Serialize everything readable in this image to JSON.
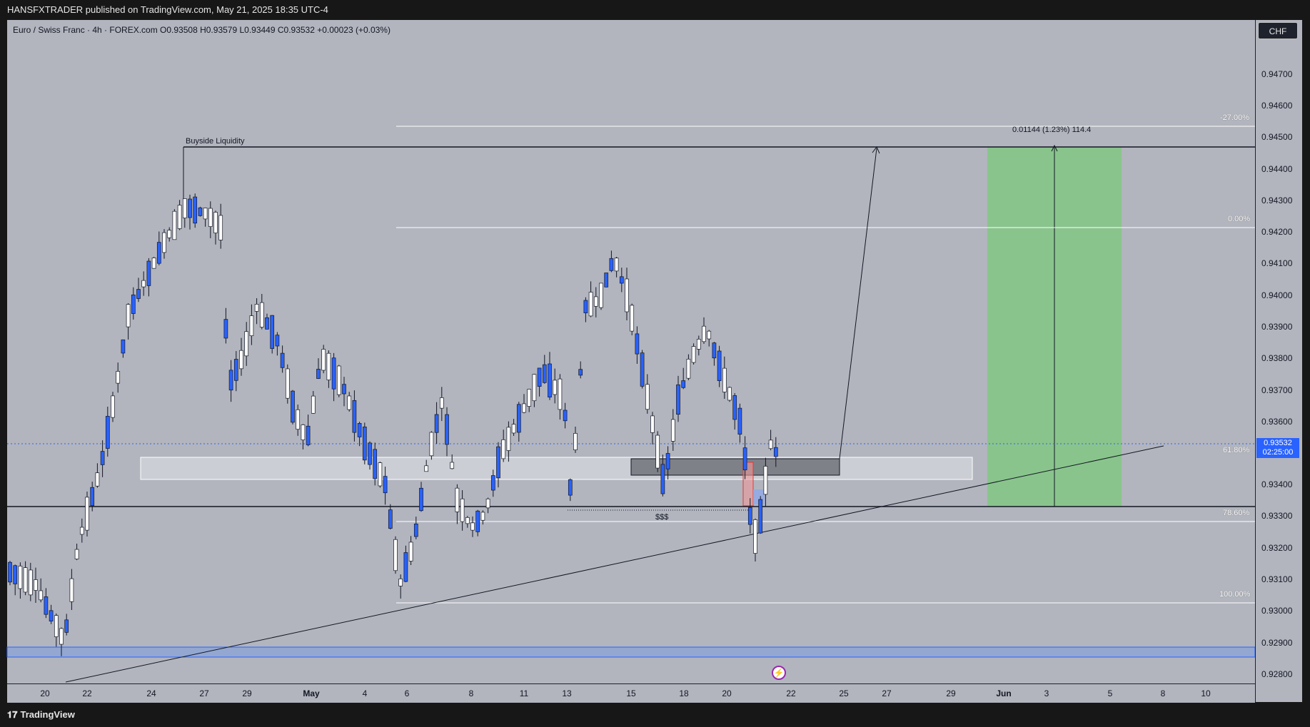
{
  "header": {
    "published": "HANSFXTRADER published on TradingView.com, May 21, 2025 18:35 UTC-4"
  },
  "legend": {
    "text": "Euro / Swiss Franc · 4h · FOREX.com  O0.93508  H0.93579  L0.93449  C0.93532  +0.00023 (+0.03%)"
  },
  "currency_button": "CHF",
  "price_axis": {
    "labels": [
      "0.94700",
      "0.94600",
      "0.94500",
      "0.94400",
      "0.94300",
      "0.94200",
      "0.94100",
      "0.94000",
      "0.93900",
      "0.93800",
      "0.93700",
      "0.93600",
      "0.93400",
      "0.93300",
      "0.93200",
      "0.93100",
      "0.93000",
      "0.92900",
      "0.92800"
    ],
    "current_price": "0.93532",
    "countdown": "02:25:00"
  },
  "time_axis": [
    "20",
    "22",
    "24",
    "27",
    "29",
    "May",
    "4",
    "6",
    "8",
    "11",
    "13",
    "15",
    "18",
    "20",
    "22",
    "25",
    "27",
    "29",
    "Jun",
    "3",
    "5",
    "8",
    "10"
  ],
  "annotations": {
    "buyside_liquidity": "Buyside Liquidity",
    "sss": "$$$",
    "measure": "0.01144 (1.23%) 114.4"
  },
  "fib_levels": [
    "-27.00%",
    "0.00%",
    "61.80%",
    "78.60%",
    "100.00%"
  ],
  "footer": {
    "logo": "TradingView"
  },
  "colors": {
    "background": "#b2b5be",
    "bull_candle": "#2962ff",
    "bear_candle": "#ffffff",
    "target_zone": "#81c784",
    "accent": "#2962ff"
  }
}
